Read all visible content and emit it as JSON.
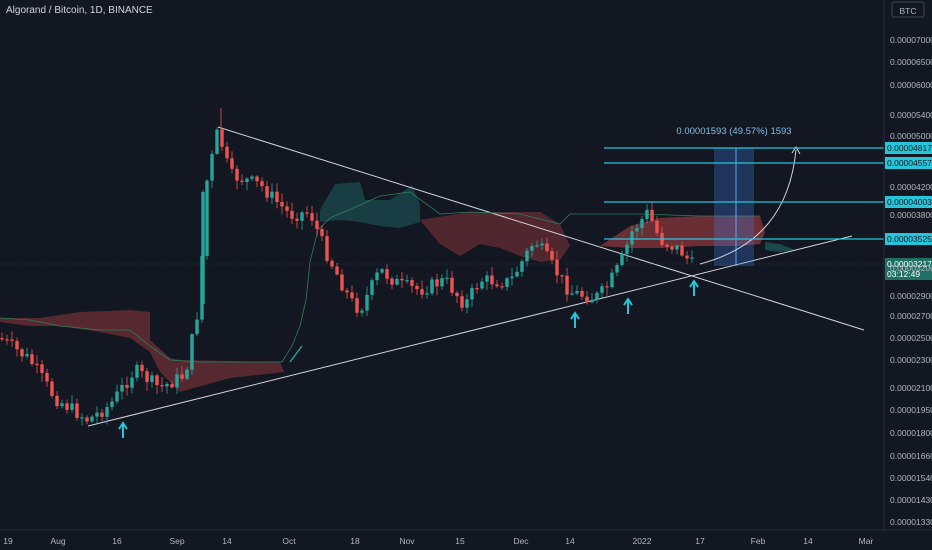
{
  "header": {
    "title": "Algorand / Bitcoin, 1D, BINANCE"
  },
  "axis": {
    "unit_label": "BTC"
  },
  "chart_data": {
    "type": "candlestick",
    "symbol": "Algorand / Bitcoin",
    "timeframe": "1D",
    "exchange": "BINANCE",
    "y_scale": "log",
    "ylim": [
      1.27e-05,
      8.2e-06
    ],
    "y_ticks": [
      "0.00007000",
      "0.00006500",
      "0.00006000",
      "0.00005400",
      "0.00005000",
      "0.00004200",
      "0.00003800",
      "0.00003200",
      "0.00002900",
      "0.00002700",
      "0.00002500",
      "0.00002300",
      "0.00002100",
      "0.00001950",
      "0.00001800",
      "0.00001660",
      "0.00001540",
      "0.00001430",
      "0.00001330"
    ],
    "x_ticks": [
      "19",
      "Aug",
      "16",
      "Sep",
      "14",
      "Oct",
      "18",
      "Nov",
      "15",
      "Dec",
      "14",
      "2022",
      "17",
      "Feb",
      "14",
      "Mar"
    ],
    "price_levels": [
      {
        "label": "0.00004817"
      },
      {
        "label": "0.00004557"
      },
      {
        "label": "0.00004003"
      },
      {
        "label": "0.00003525"
      }
    ],
    "current_price": {
      "label": "0.00003217",
      "countdown": "03:12:49"
    },
    "projection_text": "0.00001593 (49.57%) 1593",
    "colors": {
      "up": "#26a69a",
      "down": "#ef5350",
      "level": "#26c6da",
      "background": "#131722"
    }
  }
}
